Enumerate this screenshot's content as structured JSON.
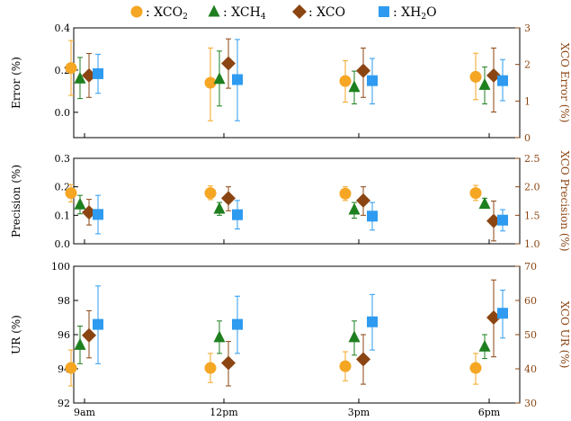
{
  "chart_data": {
    "type": "scatter",
    "categories": [
      "9am",
      "12pm",
      "3pm",
      "6pm"
    ],
    "legend": {
      "placement": "top",
      "entries": [
        {
          "series": "XCO2",
          "prefix": ": XCO",
          "sub": "2"
        },
        {
          "series": "XCH4",
          "prefix": ": XCH",
          "sub": "4"
        },
        {
          "series": "XCO",
          "prefix": ": XCO",
          "sub": ""
        },
        {
          "series": "XH2O",
          "prefix": ": XH",
          "sub": "2",
          "suffix": "O"
        }
      ]
    },
    "colors": {
      "XCO2": "#F5A623",
      "XCH4": "#1E7F1E",
      "XCO": "#8B4513",
      "XH2O": "#2E9BF0"
    },
    "markers": {
      "XCO2": "circle",
      "XCH4": "triangle",
      "XCO": "diamond",
      "XH2O": "square"
    },
    "panels": [
      {
        "ylabel": "Error (%)",
        "ylabel_right": "XCO Error (%)",
        "ylim": [
          -0.12,
          0.4
        ],
        "yticks": [
          "0.0",
          "0.2",
          "0.4"
        ],
        "yticks_values": [
          0.0,
          0.2,
          0.4
        ],
        "ylim_right": [
          0,
          3
        ],
        "yticks_right": [
          "0",
          "1",
          "2",
          "3"
        ],
        "yticks_right_values": [
          0,
          1,
          2,
          3
        ],
        "series": [
          {
            "name": "XCO2",
            "axis": "left",
            "values": [
              0.21,
              0.14,
              0.148,
              0.168
            ],
            "err_low": [
              0.08,
              -0.04,
              0.048,
              0.06
            ],
            "err_high": [
              0.34,
              0.305,
              0.245,
              0.28
            ]
          },
          {
            "name": "XCH4",
            "axis": "left",
            "values": [
              0.16,
              0.158,
              0.12,
              0.13
            ],
            "err_low": [
              0.065,
              0.03,
              0.04,
              0.04
            ],
            "err_high": [
              0.26,
              0.29,
              0.195,
              0.215
            ]
          },
          {
            "name": "XCO",
            "axis": "right",
            "values": [
              1.7,
              2.03,
              1.83,
              1.7
            ],
            "err_low": [
              1.1,
              1.35,
              1.1,
              0.7
            ],
            "err_high": [
              2.3,
              2.7,
              2.45,
              2.45
            ]
          },
          {
            "name": "XH2O",
            "axis": "left",
            "values": [
              0.183,
              0.155,
              0.15,
              0.15
            ],
            "err_low": [
              0.09,
              -0.04,
              0.04,
              0.055
            ],
            "err_high": [
              0.275,
              0.345,
              0.255,
              0.25
            ]
          }
        ]
      },
      {
        "ylabel": "Precision (%)",
        "ylabel_right": "XCO Precision (%)",
        "ylim": [
          0.0,
          0.3
        ],
        "yticks": [
          "0.0",
          "0.1",
          "0.2",
          "0.3"
        ],
        "yticks_values": [
          0.0,
          0.1,
          0.2,
          0.3
        ],
        "ylim_right": [
          1.0,
          2.5
        ],
        "yticks_right": [
          "1.0",
          "1.5",
          "2.0",
          "2.5"
        ],
        "yticks_right_values": [
          1.0,
          1.5,
          2.0,
          2.5
        ],
        "series": [
          {
            "name": "XCO2",
            "axis": "left",
            "values": [
              0.178,
              0.178,
              0.176,
              0.178
            ],
            "err_low": [
              0.147,
              0.155,
              0.152,
              0.152
            ],
            "err_high": [
              0.208,
              0.203,
              0.2,
              0.205
            ]
          },
          {
            "name": "XCH4",
            "axis": "left",
            "values": [
              0.138,
              0.123,
              0.12,
              0.14
            ],
            "err_low": [
              0.105,
              0.1,
              0.09,
              0.125
            ],
            "err_high": [
              0.17,
              0.145,
              0.145,
              0.16
            ]
          },
          {
            "name": "XCO",
            "axis": "right",
            "values": [
              1.55,
              1.8,
              1.76,
              1.4
            ],
            "err_low": [
              1.33,
              1.58,
              1.5,
              1.05
            ],
            "err_high": [
              1.78,
              2.0,
              2.0,
              1.75
            ]
          },
          {
            "name": "XH2O",
            "axis": "left",
            "values": [
              0.103,
              0.102,
              0.097,
              0.083
            ],
            "err_low": [
              0.035,
              0.052,
              0.048,
              0.045
            ],
            "err_high": [
              0.17,
              0.152,
              0.145,
              0.12
            ]
          }
        ]
      },
      {
        "ylabel": "UR (%)",
        "ylabel_right": "XCO UR (%)",
        "ylim": [
          92,
          100
        ],
        "yticks": [
          "92",
          "94",
          "96",
          "98",
          "100"
        ],
        "yticks_values": [
          92,
          94,
          96,
          98,
          100
        ],
        "ylim_right": [
          30,
          70
        ],
        "yticks_right": [
          "30",
          "40",
          "50",
          "60",
          "70"
        ],
        "yticks_right_values": [
          30,
          40,
          50,
          60,
          70
        ],
        "series": [
          {
            "name": "XCO2",
            "axis": "left",
            "values": [
              94.05,
              94.05,
              94.15,
              94.05
            ],
            "err_low": [
              93.0,
              93.2,
              93.3,
              93.1
            ],
            "err_high": [
              95.1,
              94.9,
              95.0,
              94.9
            ]
          },
          {
            "name": "XCH4",
            "axis": "left",
            "values": [
              95.4,
              95.85,
              95.85,
              95.3
            ],
            "err_low": [
              94.3,
              94.9,
              94.8,
              94.6
            ],
            "err_high": [
              96.5,
              96.8,
              96.8,
              96.0
            ]
          },
          {
            "name": "XCO",
            "axis": "right",
            "values": [
              49.8,
              41.7,
              42.8,
              55.0
            ],
            "err_low": [
              43.2,
              35.0,
              35.5,
              43.5
            ],
            "err_high": [
              57.0,
              48.0,
              50.0,
              66.0
            ]
          },
          {
            "name": "XH2O",
            "axis": "left",
            "values": [
              96.6,
              96.6,
              96.75,
              97.25
            ],
            "err_low": [
              94.3,
              94.9,
              95.1,
              95.8
            ],
            "err_high": [
              98.85,
              98.25,
              98.35,
              98.6
            ]
          }
        ]
      }
    ]
  }
}
